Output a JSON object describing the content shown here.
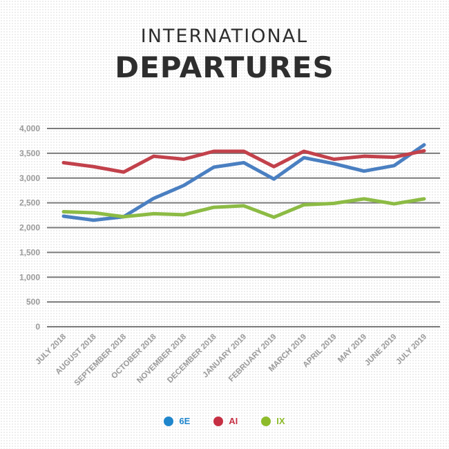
{
  "header": {
    "line1": "INTERNATIONAL",
    "line2": "DEPARTURES"
  },
  "chart_data": {
    "type": "line",
    "categories": [
      "JULY 2018",
      "AUGUST 2018",
      "SEPTEMBER 2018",
      "OCTOBER 2018",
      "NOVEMBER 2018",
      "DECEMBER 2018",
      "JANUARY 2019",
      "FEBRUARY 2019",
      "MARCH 2019",
      "APRIL 2019",
      "MAY 2019",
      "JUNE 2019",
      "JULY 2019"
    ],
    "yticks": [
      "4,000",
      "3,500",
      "3,000",
      "2,500",
      "2,000",
      "1,500",
      "1,000",
      "500",
      "0"
    ],
    "ylim": [
      0,
      4000
    ],
    "grid": true,
    "legend_position": "bottom",
    "series": [
      {
        "name": "6E",
        "color": "#4a7fc1",
        "legend_color": "#1f86cc",
        "values": [
          2230,
          2150,
          2220,
          2590,
          2850,
          3220,
          3310,
          2980,
          3410,
          3290,
          3140,
          3250,
          3670
        ]
      },
      {
        "name": "AI",
        "color": "#c2414b",
        "legend_color": "#c62f43",
        "values": [
          3310,
          3230,
          3120,
          3440,
          3380,
          3540,
          3540,
          3230,
          3540,
          3380,
          3440,
          3420,
          3550
        ]
      },
      {
        "name": "IX",
        "color": "#8cbb44",
        "legend_color": "#8dbb2a",
        "values": [
          2320,
          2300,
          2220,
          2280,
          2260,
          2410,
          2440,
          2210,
          2460,
          2490,
          2580,
          2480,
          2580
        ]
      }
    ]
  }
}
